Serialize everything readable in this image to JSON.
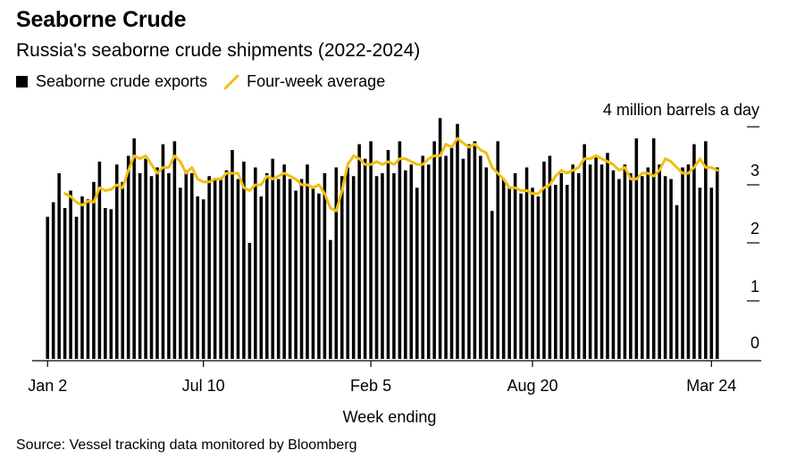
{
  "title": "Seaborne Crude",
  "subtitle": "Russia's seaborne crude shipments (2022-2024)",
  "legend": {
    "bar_label": "Seaborne crude exports",
    "line_label": "Four-week average"
  },
  "source": "Source: Vessel tracking data monitored by Bloomberg",
  "chart_data": {
    "type": "bar",
    "xlabel": "Week ending",
    "ylabel": "",
    "unit_label": "4 million barrels a day",
    "ylim": [
      0,
      4
    ],
    "yticks": [
      0,
      1,
      2,
      3
    ],
    "yticks_labeled": [
      "0",
      "1",
      "2",
      "3"
    ],
    "x_tick_labels": [
      "Jan 2",
      "Jul 10",
      "Feb 5",
      "Aug 20",
      "Mar 24"
    ],
    "x_tick_indices": [
      0,
      27,
      56,
      84,
      115
    ],
    "colors": {
      "bars": "#000000",
      "average": "#f2bf0e"
    },
    "grid": false,
    "legend_position": "top-left",
    "series": [
      {
        "name": "Seaborne crude exports",
        "kind": "bar",
        "values": [
          2.45,
          2.7,
          3.2,
          2.6,
          2.9,
          2.45,
          2.8,
          2.75,
          3.05,
          3.4,
          2.6,
          2.58,
          3.35,
          3.05,
          3.5,
          3.8,
          3.2,
          3.45,
          3.15,
          3.3,
          3.7,
          3.2,
          3.75,
          2.95,
          3.25,
          3.2,
          2.8,
          2.75,
          3.15,
          3.1,
          3.1,
          3.25,
          3.6,
          3.1,
          3.4,
          2.0,
          3.3,
          2.8,
          3.2,
          3.45,
          3.1,
          3.35,
          3.1,
          2.9,
          3.1,
          3.35,
          2.95,
          2.85,
          3.2,
          2.05,
          3.3,
          3.15,
          3.3,
          3.15,
          3.7,
          3.45,
          3.75,
          3.15,
          3.2,
          3.6,
          3.2,
          3.75,
          3.25,
          3.35,
          2.95,
          3.5,
          3.35,
          3.75,
          4.15,
          3.5,
          3.65,
          4.05,
          3.45,
          3.7,
          3.75,
          3.5,
          3.3,
          2.55,
          3.75,
          3.1,
          2.95,
          3.2,
          2.85,
          3.3,
          2.95,
          2.8,
          3.4,
          3.5,
          3.0,
          3.2,
          3.0,
          3.35,
          3.2,
          3.7,
          3.35,
          3.5,
          3.35,
          3.55,
          3.25,
          3.1,
          3.35,
          3.2,
          3.8,
          3.15,
          3.3,
          3.8,
          3.35,
          3.15,
          3.1,
          2.65,
          3.3,
          3.35,
          3.7,
          2.95,
          3.75,
          2.95,
          3.3
        ]
      },
      {
        "name": "Four-week average",
        "kind": "line",
        "values": [
          null,
          null,
          null,
          2.85,
          2.8,
          2.7,
          2.65,
          2.72,
          2.7,
          2.95,
          2.9,
          2.92,
          3.0,
          2.95,
          3.25,
          3.5,
          3.45,
          3.5,
          3.35,
          3.2,
          3.3,
          3.3,
          3.5,
          3.4,
          3.2,
          3.3,
          3.1,
          3.05,
          3.05,
          3.1,
          3.1,
          3.2,
          3.2,
          3.2,
          2.95,
          2.9,
          3.0,
          3.0,
          3.15,
          3.1,
          3.15,
          3.2,
          3.15,
          3.1,
          3.0,
          3.0,
          2.95,
          3.0,
          2.85,
          2.6,
          2.55,
          2.9,
          3.35,
          3.5,
          3.45,
          3.35,
          3.35,
          3.4,
          3.35,
          3.4,
          3.35,
          3.45,
          3.45,
          3.4,
          3.35,
          3.35,
          3.45,
          3.5,
          3.5,
          3.7,
          3.65,
          3.8,
          3.72,
          3.65,
          3.7,
          3.6,
          3.55,
          3.3,
          3.2,
          3.1,
          2.95,
          2.95,
          2.9,
          2.9,
          2.85,
          2.85,
          2.95,
          3.0,
          3.15,
          3.25,
          3.2,
          3.25,
          3.3,
          3.45,
          3.45,
          3.5,
          3.45,
          3.4,
          3.35,
          3.25,
          3.3,
          3.1,
          3.1,
          3.2,
          3.2,
          3.15,
          3.25,
          3.45,
          3.4,
          3.3,
          3.2,
          3.2,
          3.3,
          3.45,
          3.3,
          3.3,
          3.25
        ]
      }
    ]
  }
}
